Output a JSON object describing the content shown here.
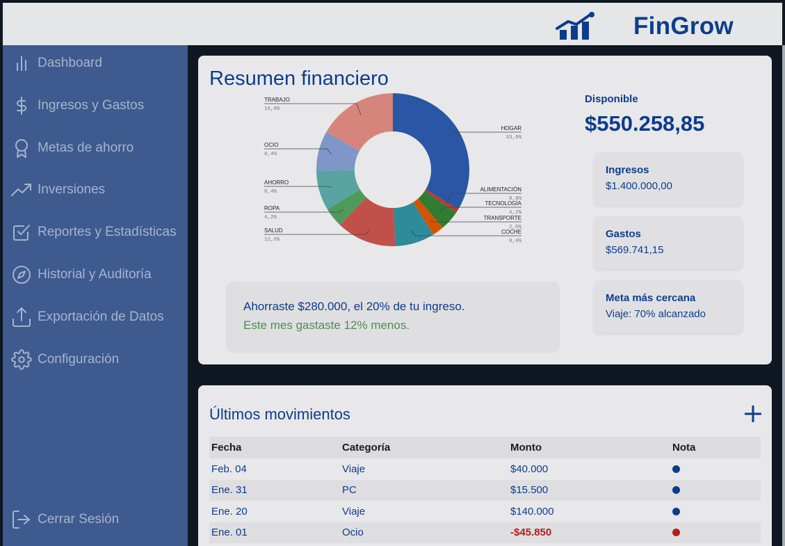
{
  "app": {
    "brand": "FinGrow"
  },
  "sidebar": {
    "items": [
      {
        "label": "Dashboard",
        "icon": "bar-chart-icon"
      },
      {
        "label": "Ingresos y Gastos",
        "icon": "dollar-icon"
      },
      {
        "label": "Metas de ahorro",
        "icon": "award-icon"
      },
      {
        "label": "Inversiones",
        "icon": "trending-up-icon"
      },
      {
        "label": "Reportes y Estadísticas",
        "icon": "check-square-icon"
      },
      {
        "label": "Historial y Auditoría",
        "icon": "compass-icon"
      },
      {
        "label": "Exportación de Datos",
        "icon": "upload-icon"
      },
      {
        "label": "Configuración",
        "icon": "gear-icon"
      }
    ],
    "logout": {
      "label": "Cerrar Sesión",
      "icon": "logout-icon"
    }
  },
  "summary": {
    "title": "Resumen financiero",
    "available_label": "Disponible",
    "available_amount": "$550.258,85",
    "stats": [
      {
        "label": "Ingresos",
        "value": "$1.400.000,00"
      },
      {
        "label": "Gastos",
        "value": "$569.741,15"
      },
      {
        "label": "Meta más cercana",
        "value": "Viaje: 70% alcanzado"
      }
    ],
    "message_primary": "Ahorraste $280.000, el 20% de tu ingreso.",
    "message_secondary": "Este mes gastaste 12% menos."
  },
  "chart_data": {
    "type": "pie",
    "slices": [
      {
        "label": "HOGAR",
        "percent": "33,6%",
        "value": 33.6,
        "color": "#2a56a6"
      },
      {
        "label": "ALIMENTACIÓN",
        "percent": "0,8%",
        "value": 0.8,
        "color": "#c0392b"
      },
      {
        "label": "TECNOLOGÍA",
        "percent": "4,2%",
        "value": 4.2,
        "color": "#2e7d32"
      },
      {
        "label": "TRANSPORTE",
        "percent": "2,5%",
        "value": 2.5,
        "color": "#d35400"
      },
      {
        "label": "COCHE",
        "percent": "8,4%",
        "value": 8.4,
        "color": "#2e8b9a"
      },
      {
        "label": "SALUD",
        "percent": "12,6%",
        "value": 12.6,
        "color": "#c2504a"
      },
      {
        "label": "ROPA",
        "percent": "4,2%",
        "value": 4.2,
        "color": "#4e9a5a"
      },
      {
        "label": "AHORRO",
        "percent": "8,4%",
        "value": 8.4,
        "color": "#5aa3a3"
      },
      {
        "label": "OCIO",
        "percent": "8,4%",
        "value": 8.4,
        "color": "#7f96c8"
      },
      {
        "label": "TRABAJO",
        "percent": "16,8%",
        "value": 16.8,
        "color": "#d6857c"
      }
    ]
  },
  "movements": {
    "title": "Últimos movimientos",
    "columns": [
      "Fecha",
      "Categoría",
      "Monto",
      "Nota"
    ],
    "rows": [
      {
        "date": "Feb. 04",
        "category": "Viaje",
        "amount": "$40.000",
        "note_color": "#0d3c8c",
        "negative": false
      },
      {
        "date": "Ene. 31",
        "category": "PC",
        "amount": "$15.500",
        "note_color": "#0d3c8c",
        "negative": false
      },
      {
        "date": "Ene. 20",
        "category": "Viaje",
        "amount": "$140.000",
        "note_color": "#0d3c8c",
        "negative": false
      },
      {
        "date": "Ene. 01",
        "category": "Ocio",
        "amount": "-$45.850",
        "note_color": "#b71c1c",
        "negative": true
      }
    ]
  }
}
